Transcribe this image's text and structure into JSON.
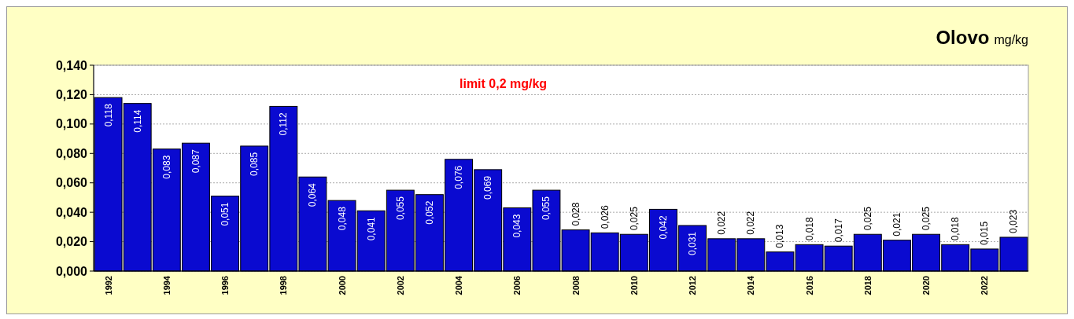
{
  "chart_data": {
    "type": "bar",
    "title": "Olovo",
    "subtitle": "mg/kg",
    "categories": [
      "1992",
      null,
      "1994",
      null,
      "1996",
      null,
      "1998",
      null,
      "2000",
      null,
      "2002",
      null,
      "2004",
      null,
      "2006",
      null,
      "2008",
      null,
      "2010",
      null,
      "2012",
      null,
      "2014",
      null,
      "2016",
      null,
      "2018",
      null,
      "2020",
      null,
      "2022",
      null
    ],
    "values": [
      0.118,
      0.114,
      0.083,
      0.087,
      0.051,
      0.085,
      0.112,
      0.064,
      0.048,
      0.041,
      0.055,
      0.052,
      0.076,
      0.069,
      0.043,
      0.055,
      0.028,
      0.026,
      0.025,
      0.042,
      0.031,
      0.022,
      0.022,
      0.013,
      0.018,
      0.017,
      0.025,
      0.021,
      0.025,
      0.018,
      0.015,
      0.023
    ],
    "value_labels": [
      "0,118",
      "0,114",
      "0,083",
      "0,087",
      "0,051",
      "0,085",
      "0,112",
      "0,064",
      "0,048",
      "0,041",
      "0,055",
      "0,052",
      "0,076",
      "0,069",
      "0,043",
      "0,055",
      "0,028",
      "0,026",
      "0,025",
      "0,042",
      "0,031",
      "0,022",
      "0,022",
      "0,013",
      "0,018",
      "0,017",
      "0,025",
      "0,021",
      "0,025",
      "0,018",
      "0,015",
      "0,023"
    ],
    "color": "#0a0ad0",
    "ylim": [
      0,
      0.14
    ],
    "yticks": [
      {
        "value": 0,
        "label": "0,000"
      },
      {
        "value": 0.02,
        "label": "0,020"
      },
      {
        "value": 0.04,
        "label": "0,040"
      },
      {
        "value": 0.06,
        "label": "0,060"
      },
      {
        "value": 0.08,
        "label": "0,080"
      },
      {
        "value": 0.1,
        "label": "0,100"
      },
      {
        "value": 0.12,
        "label": "0,120"
      },
      {
        "value": 0.14,
        "label": "0,140"
      }
    ],
    "grid": "y",
    "annotations": [
      "limit 0,2 mg/kg"
    ]
  }
}
